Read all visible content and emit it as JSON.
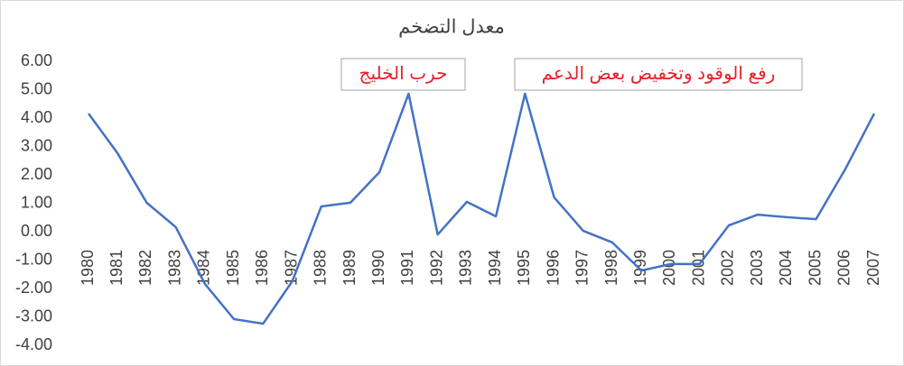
{
  "chart_data": {
    "type": "line",
    "title": "معدل التضخم",
    "categories": [
      "1980",
      "1981",
      "1982",
      "1983",
      "1984",
      "1985",
      "1986",
      "1987",
      "1988",
      "1989",
      "1990",
      "1991",
      "1992",
      "1993",
      "1994",
      "1995",
      "1996",
      "1997",
      "1998",
      "1999",
      "2000",
      "2001",
      "2002",
      "2003",
      "2004",
      "2005",
      "2006",
      "2007"
    ],
    "series": [
      {
        "name": "معدل التضخم",
        "color": "#4472c4",
        "values": [
          4.16,
          2.76,
          1.02,
          0.16,
          -1.84,
          -3.08,
          -3.24,
          -1.75,
          0.89,
          1.02,
          2.1,
          4.86,
          -0.1,
          1.05,
          0.54,
          4.86,
          1.21,
          0.03,
          -0.38,
          -1.37,
          -1.14,
          -1.14,
          0.22,
          0.6,
          0.51,
          0.44,
          2.19,
          4.16
        ]
      }
    ],
    "ylim": [
      -4,
      6
    ],
    "yticks": [
      {
        "value": -4,
        "label": "-4.00"
      },
      {
        "value": -3,
        "label": "-3.00"
      },
      {
        "value": -2,
        "label": "-2.00"
      },
      {
        "value": -1,
        "label": "-1.00"
      },
      {
        "value": 0,
        "label": "0.00"
      },
      {
        "value": 1,
        "label": "1.00"
      },
      {
        "value": 2,
        "label": "2.00"
      },
      {
        "value": 3,
        "label": "3.00"
      },
      {
        "value": 4,
        "label": "4.00"
      },
      {
        "value": 5,
        "label": "5.00"
      },
      {
        "value": 6,
        "label": "6.00"
      }
    ],
    "annotations": [
      "حرب الخليج",
      "رفع الوقود وتخفيض بعض الدعم"
    ],
    "annotation_color": "#e8202a",
    "grid": false
  }
}
